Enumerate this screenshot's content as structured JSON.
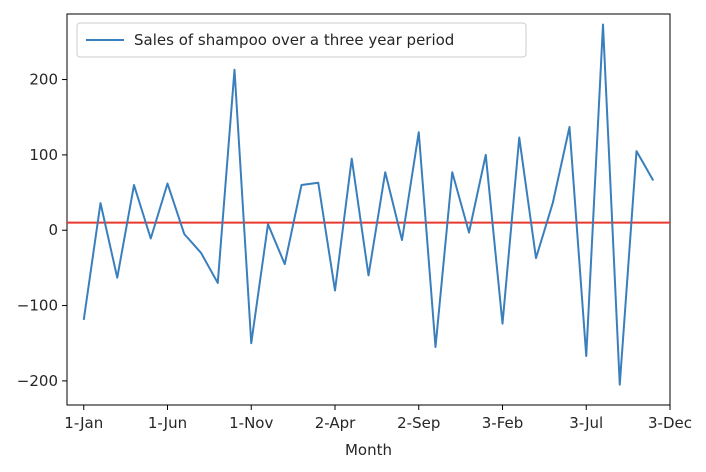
{
  "chart_data": {
    "type": "line",
    "title": "",
    "xlabel": "Month",
    "ylabel": "",
    "x_tick_labels": [
      "1-Jan",
      "1-Jun",
      "1-Nov",
      "2-Apr",
      "2-Sep",
      "3-Feb",
      "3-Jul",
      "3-Dec"
    ],
    "x_tick_index": [
      0,
      5,
      10,
      15,
      20,
      25,
      30,
      35
    ],
    "y_ticks": [
      -200,
      -100,
      0,
      100,
      200
    ],
    "ylim": [
      -232,
      287
    ],
    "xlim": [
      -1,
      35
    ],
    "grid": false,
    "legend_position": "top-left",
    "series": [
      {
        "name": "Sales of shampoo over a three year period",
        "color": "#3a7fbd",
        "values": [
          -119,
          36,
          -63,
          60,
          -11,
          62,
          -5,
          -30,
          -70,
          213,
          -150,
          8,
          -45,
          60,
          63,
          -80,
          95,
          -60,
          77,
          -13,
          130,
          -155,
          77,
          -3,
          100,
          -124,
          123,
          -37,
          36,
          137,
          -167,
          273,
          -205,
          105,
          66
        ]
      }
    ],
    "reference_line": {
      "value": 10,
      "color": "#e8382f"
    }
  }
}
